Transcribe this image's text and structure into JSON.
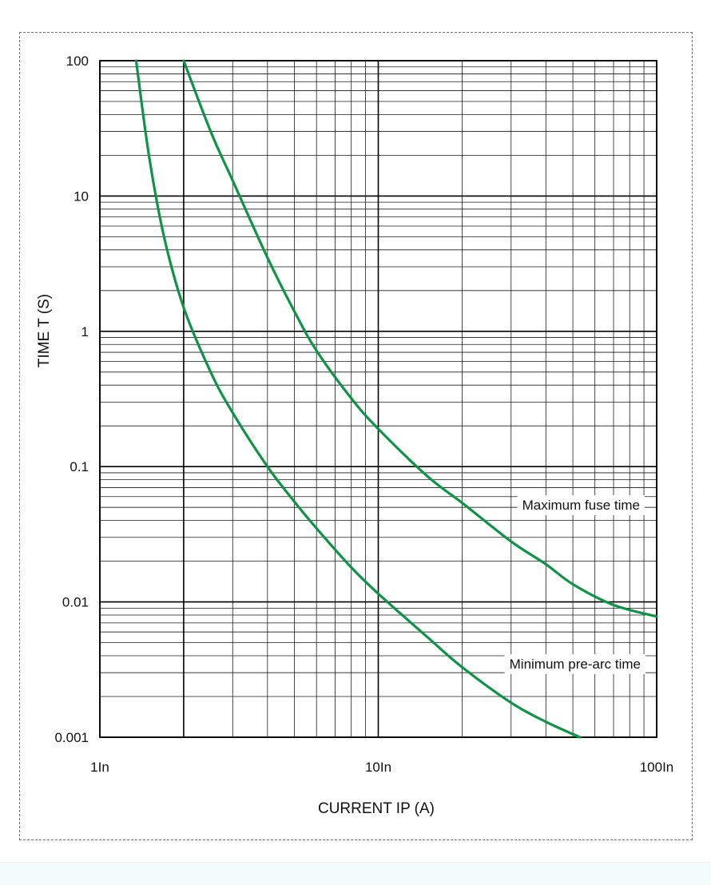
{
  "chart_data": {
    "type": "line",
    "xscale": "log",
    "yscale": "log",
    "xlabel": "CURRENT IP (A)",
    "ylabel": "TIME T (S)",
    "xlim": [
      1,
      100
    ],
    "ylim": [
      0.001,
      100
    ],
    "grid": true,
    "x_ticks": [
      1,
      10,
      100
    ],
    "x_tick_labels": [
      "1In",
      "10In",
      "100In"
    ],
    "y_ticks": [
      100,
      10,
      1,
      0.1,
      0.01,
      0.001
    ],
    "y_tick_labels": [
      "100",
      "10",
      "1",
      "0.1",
      "0.01",
      "0.001"
    ],
    "series": [
      {
        "name": "Maximum fuse time",
        "color": "#0f9447",
        "x": [
          2.0,
          2.5,
          3.0,
          4.0,
          5.0,
          6.0,
          8.0,
          10.0,
          15.0,
          20.0,
          30.0,
          40.0,
          50.0,
          70.0,
          100.0
        ],
        "y": [
          100,
          30,
          13,
          3.5,
          1.4,
          0.72,
          0.32,
          0.19,
          0.085,
          0.054,
          0.028,
          0.019,
          0.0135,
          0.0095,
          0.0078
        ]
      },
      {
        "name": "Minimum pre-arc time",
        "color": "#0f9447",
        "x": [
          1.35,
          1.5,
          1.7,
          2.0,
          2.5,
          3.0,
          4.0,
          5.0,
          6.0,
          8.0,
          10.0,
          15.0,
          20.0,
          30.0,
          40.0,
          53.0
        ],
        "y": [
          100,
          20,
          5,
          1.5,
          0.5,
          0.25,
          0.1,
          0.055,
          0.035,
          0.018,
          0.0115,
          0.0055,
          0.0033,
          0.0018,
          0.0013,
          0.001
        ]
      }
    ],
    "annotations": [
      "Maximum fuse time",
      "Minimum pre-arc time"
    ]
  }
}
